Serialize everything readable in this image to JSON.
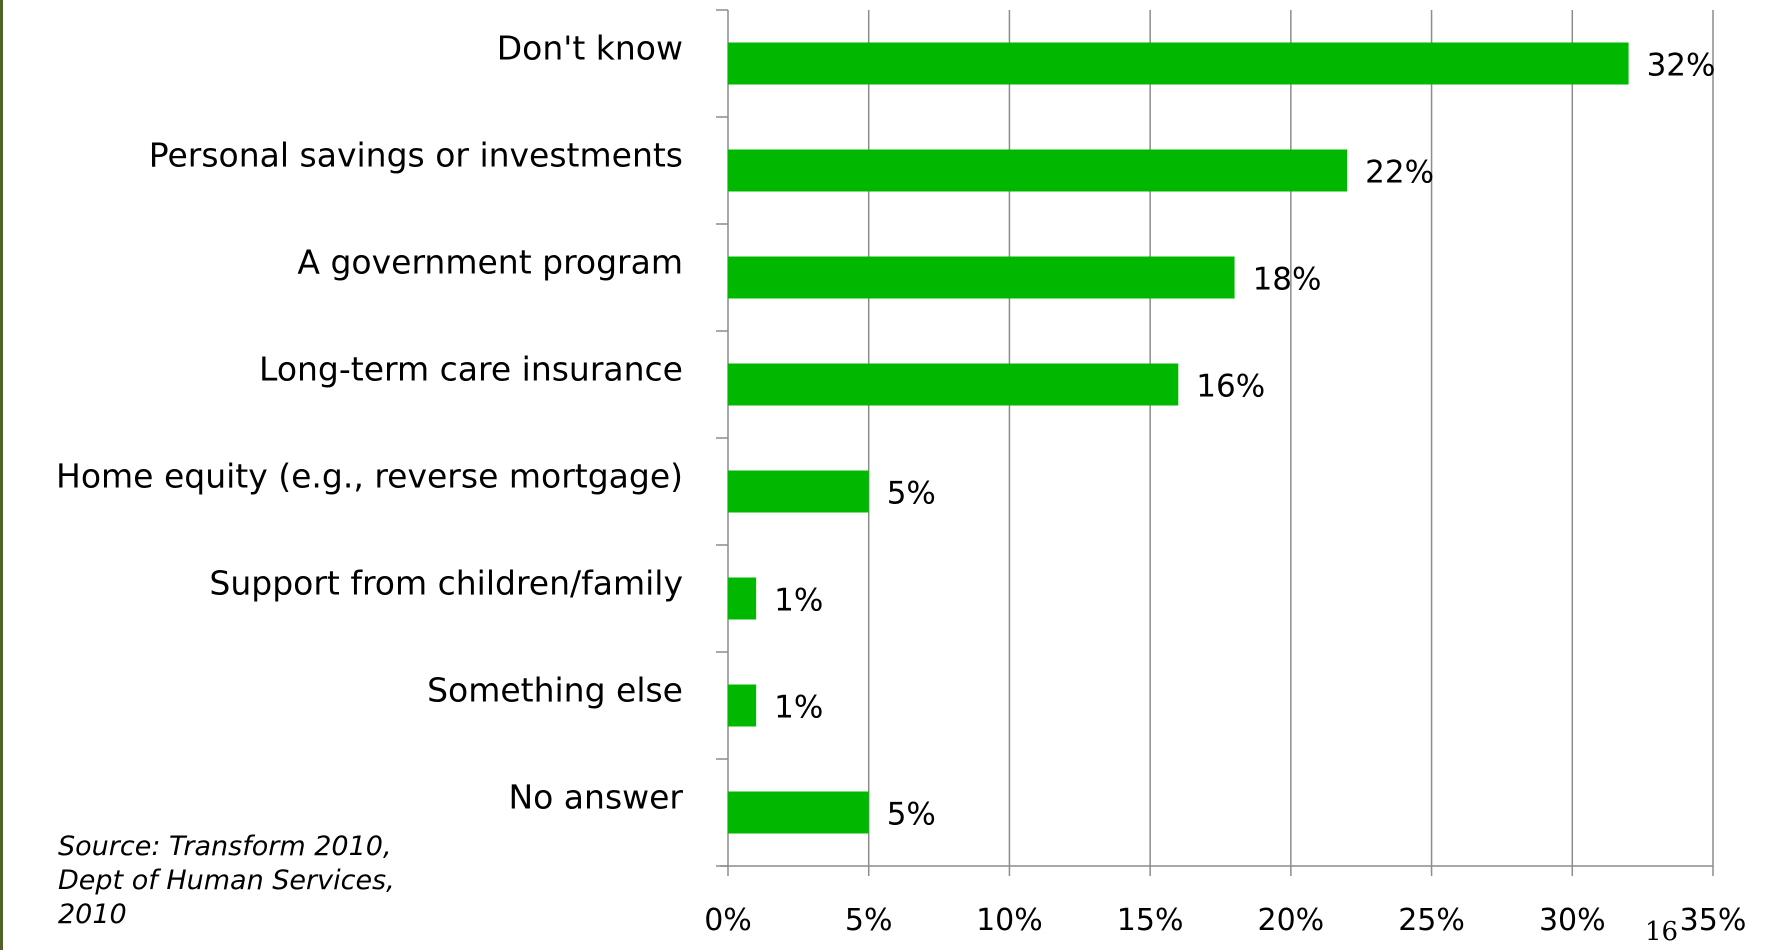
{
  "source_note": {
    "lines": [
      "Source: Transform 2010,",
      "Dept of Human Services,",
      "2010"
    ]
  },
  "page_number": "16",
  "colors": {
    "bar": "#00b800",
    "gridline": "#8c8c8c",
    "axis": "#8c8c8c",
    "frame": "#4f6228"
  },
  "chart_data": {
    "type": "bar",
    "orientation": "horizontal",
    "categories": [
      "Don't know",
      "Personal savings or investments",
      "A government program",
      "Long-term care insurance",
      "Home equity (e.g., reverse mortgage)",
      "Support from children/family",
      "Something else",
      "No answer"
    ],
    "values": [
      32,
      22,
      18,
      16,
      5,
      1,
      1,
      5
    ],
    "data_labels": [
      "32%",
      "22%",
      "18%",
      "16%",
      "5%",
      "1%",
      "1%",
      "5%"
    ],
    "x_ticks": [
      0,
      5,
      10,
      15,
      20,
      25,
      30,
      35
    ],
    "x_tick_labels": [
      "0%",
      "5%",
      "10%",
      "15%",
      "20%",
      "25%",
      "30%",
      "35%"
    ],
    "xlim": [
      0,
      35
    ],
    "grid": true,
    "legend": "none",
    "title": "",
    "xlabel": "",
    "ylabel": ""
  }
}
